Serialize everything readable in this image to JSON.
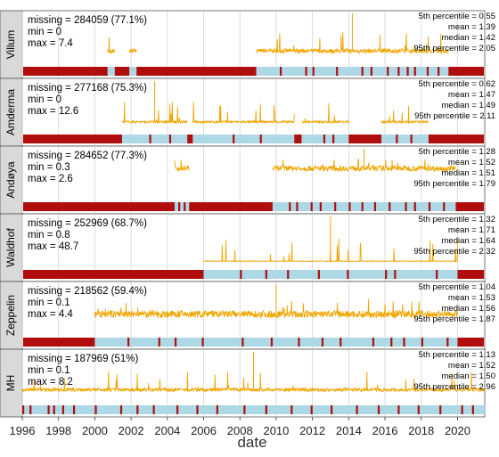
{
  "chart_data": {
    "type": "line",
    "xlabel": "date",
    "x_ticks": [
      "1996",
      "1998",
      "2000",
      "2002",
      "2004",
      "2006",
      "2008",
      "2010",
      "2012",
      "2014",
      "2016",
      "2018",
      "2020"
    ],
    "xlim": [
      "1996-01-01",
      "2021-06-30"
    ],
    "colors": {
      "line": "#f0a500",
      "present": "#add8e6",
      "missing": "#b00d0d",
      "grid": "#d4d4d4"
    },
    "panels": [
      {
        "station": "Villum",
        "missing": "missing = 284059 (77.1%)",
        "min": "min = 0",
        "max": "max = 7.4",
        "p5": "5th percentile = 0.55",
        "mean": "mean = 1.39",
        "median": "median = 1.42",
        "p95": "95th percentile = 2.05",
        "typical": 1.4,
        "spread": 0.35,
        "ylim": [
          0,
          7.4
        ],
        "present_periods": [
          [
            2008.9,
            2019.5
          ],
          [
            2001.9,
            2002.3
          ],
          [
            2000.7,
            2001.1
          ]
        ],
        "missing_marks": [
          2010.2,
          2011.6,
          2012.0,
          2013.3,
          2014.7,
          2015.2,
          2016.1,
          2016.7,
          2017.2,
          2017.6,
          2018.3,
          2018.9
        ]
      },
      {
        "station": "Amderma",
        "missing": "missing = 277168 (75.3%)",
        "min": "min = 0",
        "max": "max = 12.6",
        "p5": "5th percentile = 0.62",
        "mean": "mean = 1.47",
        "median": "median = 1.49",
        "p95": "95th percentile = 2.11",
        "typical": 1.5,
        "spread": 0.3,
        "ylim": [
          0,
          12.6
        ],
        "present_periods": [
          [
            2001.5,
            2005.1
          ],
          [
            2005.4,
            2011.0
          ],
          [
            2011.4,
            2014.0
          ],
          [
            2015.8,
            2018.4
          ]
        ],
        "missing_marks": [
          2003.0,
          2004.1,
          2007.6,
          2009.1,
          2012.6,
          2013.1,
          2016.6,
          2017.4
        ]
      },
      {
        "station": "Andøya",
        "missing": "missing = 284652 (77.3%)",
        "min": "min = 0.3",
        "max": "max = 2.6",
        "p5": "5th percentile = 1.28",
        "mean": "mean = 1.52",
        "median": "median = 1.51",
        "p95": "95th percentile = 1.79",
        "typical": 1.5,
        "spread": 0.15,
        "ylim": [
          0,
          2.6
        ],
        "present_periods": [
          [
            2009.8,
            2019.9
          ],
          [
            2004.4,
            2005.2
          ]
        ],
        "missing_marks": [
          2004.6,
          2004.9,
          2010.7,
          2011.1,
          2011.9,
          2012.4,
          2013.2,
          2014.0,
          2014.7,
          2015.4,
          2016.2,
          2017.1,
          2017.6,
          2018.4,
          2019.2
        ]
      },
      {
        "station": "Waldhof",
        "missing": "missing = 252969 (68.7%)",
        "min": "min = 0.8",
        "max": "max = 48.7",
        "p5": "5th percentile = 1.32",
        "mean": "mean = 1.71",
        "median": "median = 1.64",
        "p95": "95th percentile = 2.32",
        "typical": 1.7,
        "spread": 0.3,
        "ylim": [
          0,
          48.7
        ],
        "present_periods": [
          [
            2006.0,
            2020.0
          ]
        ],
        "missing_marks": [
          2008.0,
          2009.4,
          2010.6,
          2012.3,
          2013.9,
          2016.0,
          2016.5,
          2018.8
        ]
      },
      {
        "station": "Zeppelin",
        "missing": "missing = 218562 (59.4%)",
        "min": "min = 0.1",
        "max": "max = 4.4",
        "p5": "5th percentile = 1.04",
        "mean": "mean = 1.53",
        "median": "median = 1.56",
        "p95": "95th percentile = 1.87",
        "typical": 1.55,
        "spread": 0.35,
        "ylim": [
          0,
          4.4
        ],
        "present_periods": [
          [
            2000.0,
            2020.0
          ]
        ],
        "missing_marks": [
          2001.8,
          2003.5,
          2004.4,
          2005.9,
          2008.1,
          2009.7,
          2011.2,
          2012.5,
          2013.5,
          2015.3,
          2016.3,
          2017.0,
          2018.0,
          2019.4
        ]
      },
      {
        "station": "MH",
        "missing": "missing = 187969 (51%)",
        "min": "min = 0.1",
        "max": "max = 8.2",
        "p5": "5th percentile = 1.13",
        "mean": "mean = 1.52",
        "median": "median = 1.50",
        "p95": "95th percentile = 2.96",
        "typical": 1.5,
        "spread": 0.3,
        "ylim": [
          0,
          8.2
        ],
        "present_periods": [
          [
            1996.0,
            2021.5
          ]
        ],
        "missing_marks": [
          1996.0,
          1996.4,
          1997.4,
          1997.7,
          1998.2,
          1998.8,
          2000.0,
          2001.4,
          2002.3,
          2003.2,
          2004.5,
          2005.6,
          2006.7,
          2008.2,
          2009.4,
          2010.8,
          2011.9,
          2013.0,
          2014.4,
          2015.6,
          2016.7,
          2017.8,
          2019.0,
          2020.2,
          2020.8
        ]
      }
    ]
  }
}
